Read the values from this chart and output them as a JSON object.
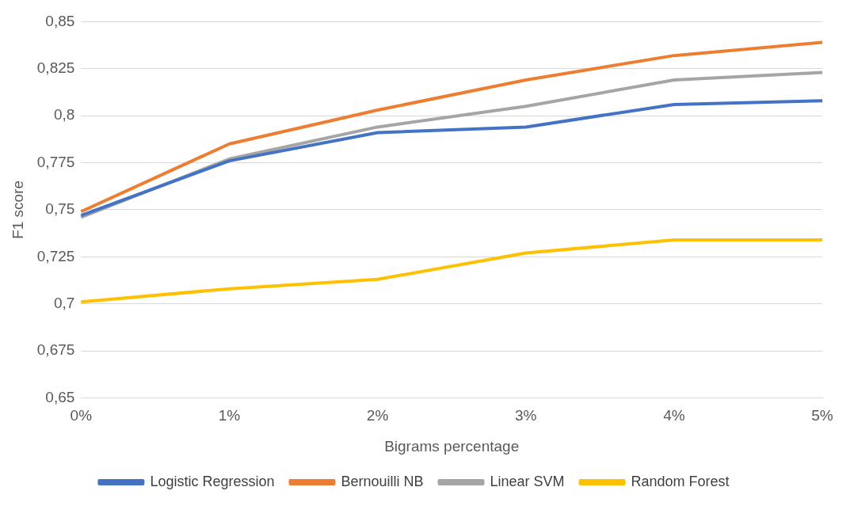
{
  "chart_data": {
    "type": "line",
    "xlabel": "Bigrams percentage",
    "ylabel": "F1 score",
    "categories": [
      "0%",
      "1%",
      "2%",
      "3%",
      "4%",
      "5%"
    ],
    "series": [
      {
        "name": "Logistic Regression",
        "color": "#4472c4",
        "values": [
          0.747,
          0.776,
          0.791,
          0.794,
          0.806,
          0.808
        ]
      },
      {
        "name": "Bernouilli NB",
        "color": "#ed7d31",
        "values": [
          0.749,
          0.785,
          0.803,
          0.819,
          0.832,
          0.839
        ]
      },
      {
        "name": "Linear SVM",
        "color": "#a5a5a5",
        "values": [
          0.746,
          0.777,
          0.794,
          0.805,
          0.819,
          0.823
        ]
      },
      {
        "name": "Random Forest",
        "color": "#ffc000",
        "values": [
          0.701,
          0.708,
          0.713,
          0.727,
          0.734,
          0.734
        ]
      }
    ],
    "ylim": [
      0.65,
      0.85
    ],
    "yticks": [
      {
        "value": 0.65,
        "label": "0,65"
      },
      {
        "value": 0.675,
        "label": "0,675"
      },
      {
        "value": 0.7,
        "label": "0,7"
      },
      {
        "value": 0.725,
        "label": "0,725"
      },
      {
        "value": 0.75,
        "label": "0,75"
      },
      {
        "value": 0.775,
        "label": "0,775"
      },
      {
        "value": 0.8,
        "label": "0,8"
      },
      {
        "value": 0.825,
        "label": "0,825"
      },
      {
        "value": 0.85,
        "label": "0,85"
      }
    ],
    "grid": "y",
    "legend": "bottom",
    "marker": "none",
    "line_style": "solid"
  }
}
